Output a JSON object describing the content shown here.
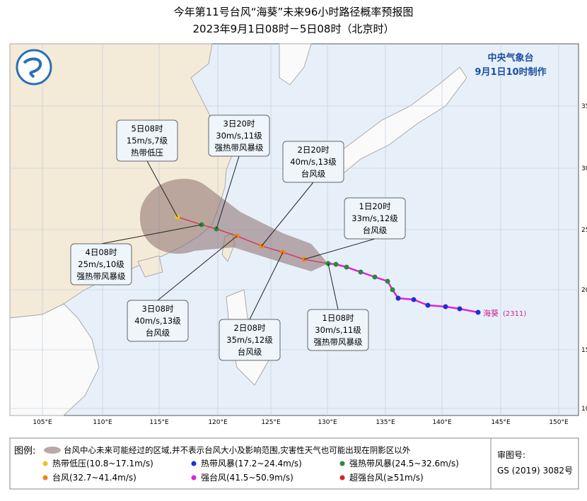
{
  "header": {
    "title": "今年第11号台风“海葵”未来96小时路径概率预报图",
    "subtitle": "2023年9月1日08时－5日08时（北京时）"
  },
  "agency": {
    "name": "中央气象台",
    "issued": "9月1日10时制作"
  },
  "storm": {
    "name": "海葵",
    "code": "(2311)"
  },
  "lon_labels": [
    "105°E",
    "110°E",
    "115°E",
    "120°E",
    "125°E",
    "130°E",
    "135°E",
    "140°E",
    "145°E",
    "150°E"
  ],
  "lat_labels": [
    "35",
    "30",
    "25",
    "20",
    "15",
    "10"
  ],
  "forecasts": [
    {
      "time": "5日08时",
      "wind": "15m/s,7级",
      "level": "热带低压"
    },
    {
      "time": "3日20时",
      "wind": "30m/s,11级",
      "level": "强热带风暴级"
    },
    {
      "time": "2日20时",
      "wind": "40m/s,13级",
      "level": "台风级"
    },
    {
      "time": "1日20时",
      "wind": "33m/s,12级",
      "level": "台风级"
    },
    {
      "time": "4日08时",
      "wind": "25m/s,10级",
      "level": "强热带风暴级"
    },
    {
      "time": "3日08时",
      "wind": "40m/s,13级",
      "level": "台风级"
    },
    {
      "time": "2日08时",
      "wind": "35m/s,12级",
      "level": "台风级"
    },
    {
      "time": "1日08时",
      "wind": "30m/s,11级",
      "level": "强热带风暴级"
    }
  ],
  "legend": {
    "title": "图例:",
    "cone": "台风中心未来可能经过的区域,并不表示台风大小及影响范围,灾害性天气也可能出现在阴影区以外",
    "items": [
      {
        "label": "热带低压(10.8~17.1m/s)",
        "color": "#f0c020"
      },
      {
        "label": "热带风暴(17.2~24.4m/s)",
        "color": "#2030d0"
      },
      {
        "label": "强热带风暴(24.5~32.6m/s)",
        "color": "#2a8a3a"
      },
      {
        "label": "台风(32.7~41.4m/s)",
        "color": "#f08020"
      },
      {
        "label": "强台风(41.5~50.9m/s)",
        "color": "#e020e0"
      },
      {
        "label": "超强台风(≥51m/s)",
        "color": "#e02020"
      }
    ]
  },
  "review": {
    "label": "审图号:",
    "number": "GS (2019) 3082号"
  }
}
